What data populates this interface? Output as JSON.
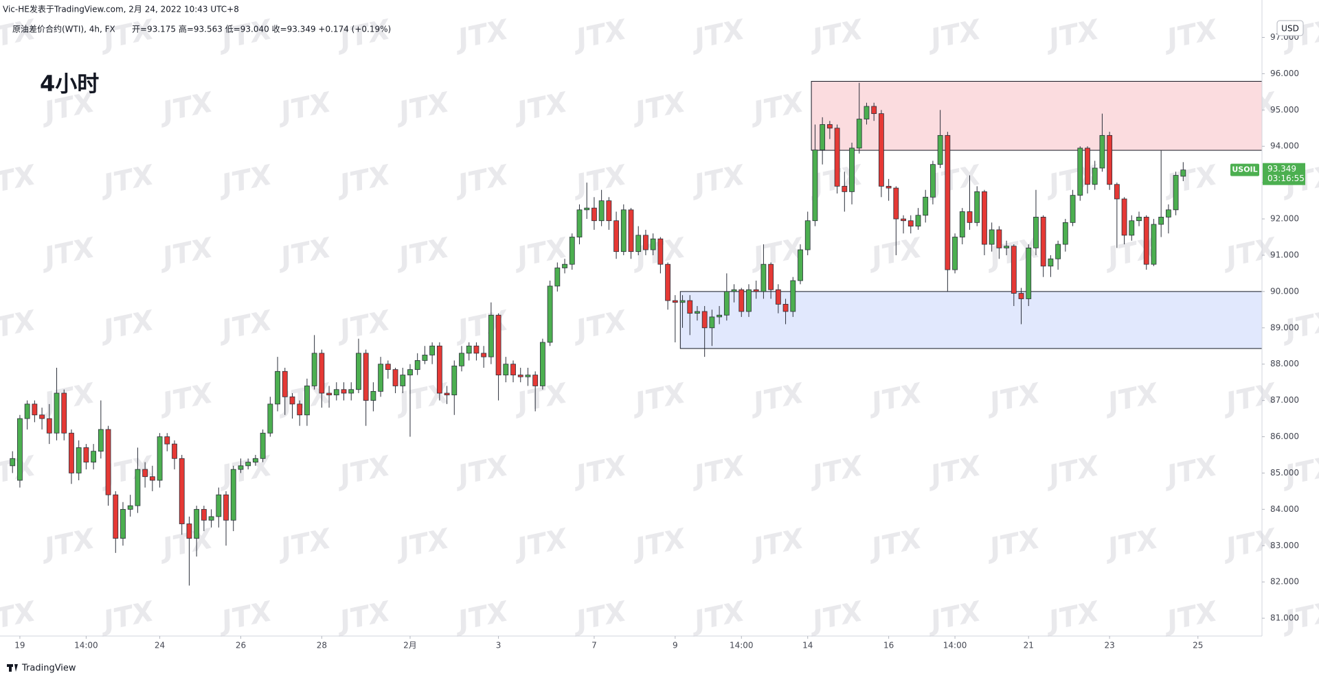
{
  "header": {
    "author_line": "Vic-HE发表于TradingView.com, 2月 24, 2022 10:43 UTC+8",
    "symbol_line": "原油差价合约(WTI), 4h, FX",
    "ohlc_line": "开=93.175 高=93.563 低=93.040 收=93.349 +0.174 (+0.19%)",
    "overlay_title": "4小时"
  },
  "footer": {
    "brand": "TradingView"
  },
  "chart_data": {
    "type": "candlestick",
    "currency": "USD",
    "symbol_tag": "USOIL",
    "countdown": "03:16:55",
    "watermark": "JTX",
    "up_color": "#4caf50",
    "down_color": "#e53935",
    "xlim": [
      -1.7,
      169.7
    ],
    "ylim": [
      80.51,
      98.03
    ],
    "xticks": [
      {
        "value": 1,
        "label": "19"
      },
      {
        "value": 10,
        "label": "14:00"
      },
      {
        "value": 20,
        "label": "24"
      },
      {
        "value": 31,
        "label": "26"
      },
      {
        "value": 42,
        "label": "28"
      },
      {
        "value": 54,
        "label": "2月"
      },
      {
        "value": 66,
        "label": "3"
      },
      {
        "value": 79,
        "label": "7"
      },
      {
        "value": 90,
        "label": "9"
      },
      {
        "value": 99,
        "label": "14:00"
      },
      {
        "value": 108,
        "label": "14"
      },
      {
        "value": 119,
        "label": "16"
      },
      {
        "value": 128,
        "label": "14:00"
      },
      {
        "value": 138,
        "label": "21"
      },
      {
        "value": 149,
        "label": "23"
      },
      {
        "value": 161,
        "label": "25"
      }
    ],
    "yticks": [
      {
        "value": 81,
        "label": "81.000"
      },
      {
        "value": 82,
        "label": "82.000"
      },
      {
        "value": 83,
        "label": "83.000"
      },
      {
        "value": 84,
        "label": "84.000"
      },
      {
        "value": 85,
        "label": "85.000"
      },
      {
        "value": 86,
        "label": "86.000"
      },
      {
        "value": 87,
        "label": "87.000"
      },
      {
        "value": 88,
        "label": "88.000"
      },
      {
        "value": 89,
        "label": "89.000"
      },
      {
        "value": 90,
        "label": "90.000"
      },
      {
        "value": 91,
        "label": "91.000"
      },
      {
        "value": 92,
        "label": "92.000"
      },
      {
        "value": 93,
        "label": "93.000"
      },
      {
        "value": 94,
        "label": "94.000"
      },
      {
        "value": 95,
        "label": "95.000"
      },
      {
        "value": 96,
        "label": "96.000"
      },
      {
        "value": 97,
        "label": "97.000"
      }
    ],
    "zones": [
      {
        "x_start": 108.5,
        "ylim": [
          93.89,
          95.79
        ],
        "color": "#fbdcdf"
      },
      {
        "x_start": 90.7,
        "ylim": [
          88.43,
          90.0
        ],
        "color": "#e1e8fd"
      }
    ],
    "open": [
      85.2,
      84.8,
      86.5,
      86.9,
      86.6,
      86.5,
      86.1,
      87.2,
      86.1,
      85.0,
      85.7,
      85.3,
      85.6,
      86.2,
      84.4,
      83.2,
      84.0,
      84.1,
      85.1,
      84.9,
      84.8,
      86.0,
      85.8,
      85.4,
      83.6,
      83.2,
      84.0,
      83.7,
      83.8,
      84.4,
      83.7,
      85.1,
      85.2,
      85.3,
      85.4,
      86.1,
      86.9,
      87.8,
      87.1,
      86.9,
      86.6,
      87.4,
      88.3,
      87.2,
      87.15,
      87.3,
      87.2,
      87.3,
      88.3,
      87.0,
      87.25,
      88.0,
      87.85,
      87.4,
      87.7,
      87.85,
      88.1,
      88.25,
      88.5,
      87.2,
      87.15,
      87.95,
      88.3,
      88.5,
      88.3,
      88.2,
      89.35,
      87.7,
      88.0,
      87.7,
      87.65,
      87.7,
      87.4,
      88.6,
      90.15,
      90.65,
      90.75,
      91.5,
      92.25,
      92.3,
      91.95,
      92.5,
      91.95,
      91.1,
      92.25,
      91.1,
      91.55,
      91.15,
      91.45,
      90.75,
      89.75,
      89.7,
      89.75,
      89.4,
      89.45,
      89.0,
      89.3,
      89.35,
      90.0,
      90.05,
      89.45,
      90.05,
      90.0,
      90.75,
      90.05,
      89.65,
      89.45,
      90.3,
      91.15,
      91.95,
      93.9,
      94.6,
      94.5,
      92.9,
      92.75,
      93.95,
      94.75,
      95.1,
      94.9,
      92.9,
      92.85,
      92.0,
      91.95,
      91.8,
      92.1,
      92.6,
      93.5,
      94.3,
      90.6,
      91.5,
      92.2,
      91.9,
      92.75,
      91.3,
      91.7,
      91.2,
      91.25,
      89.95,
      89.8,
      91.2,
      92.05,
      90.7,
      90.9,
      91.3,
      91.9,
      92.65,
      93.95,
      92.95,
      93.4,
      94.3,
      92.95,
      92.55,
      91.55,
      91.95,
      92.05,
      90.75,
      91.85,
      92.05,
      92.25,
      93.175
    ],
    "high": [
      85.6,
      86.6,
      87.0,
      87.0,
      86.8,
      86.9,
      87.9,
      87.3,
      86.2,
      85.9,
      85.8,
      85.8,
      87.0,
      86.3,
      84.5,
      84.2,
      84.4,
      85.7,
      85.3,
      85.2,
      86.1,
      86.1,
      85.9,
      85.5,
      83.8,
      84.1,
      84.1,
      84.0,
      84.6,
      84.5,
      85.2,
      85.4,
      85.4,
      85.5,
      86.2,
      87.1,
      88.2,
      87.9,
      87.2,
      87.0,
      87.6,
      88.8,
      88.4,
      87.4,
      87.5,
      87.5,
      87.5,
      88.7,
      88.4,
      87.5,
      88.2,
      88.1,
      87.9,
      87.9,
      88.0,
      88.3,
      88.5,
      88.6,
      88.6,
      87.4,
      88.1,
      88.5,
      88.6,
      88.6,
      88.5,
      89.7,
      89.4,
      88.2,
      88.1,
      87.9,
      87.9,
      87.8,
      88.7,
      90.3,
      90.8,
      90.9,
      91.6,
      92.4,
      93.0,
      92.6,
      92.8,
      92.6,
      92.2,
      92.4,
      92.3,
      91.8,
      91.7,
      91.6,
      91.5,
      90.8,
      89.9,
      89.9,
      89.9,
      89.6,
      89.6,
      89.5,
      89.6,
      90.5,
      90.2,
      90.1,
      90.2,
      90.3,
      91.3,
      90.8,
      90.2,
      89.8,
      90.4,
      91.3,
      92.2,
      94.6,
      94.8,
      94.7,
      94.6,
      93.3,
      94.1,
      95.75,
      95.2,
      95.2,
      95.0,
      93.1,
      92.9,
      92.1,
      92.1,
      92.3,
      92.8,
      93.6,
      95.0,
      94.4,
      91.6,
      92.3,
      93.2,
      92.9,
      92.8,
      91.9,
      91.8,
      91.4,
      91.3,
      90.1,
      91.3,
      92.8,
      92.1,
      91.0,
      91.4,
      92.0,
      92.8,
      94.0,
      94.0,
      93.6,
      94.9,
      94.4,
      93.0,
      92.6,
      92.1,
      92.2,
      92.1,
      92.0,
      93.9,
      92.4,
      93.3,
      93.563
    ],
    "low": [
      85.0,
      84.6,
      86.2,
      86.4,
      86.2,
      85.8,
      85.9,
      85.9,
      84.7,
      84.8,
      85.1,
      85.1,
      85.4,
      84.1,
      82.8,
      83.0,
      83.8,
      83.9,
      84.6,
      84.5,
      84.6,
      85.6,
      85.1,
      83.3,
      81.9,
      82.7,
      83.4,
      83.5,
      83.5,
      83.0,
      83.4,
      85.0,
      85.1,
      85.2,
      85.3,
      86.0,
      86.7,
      86.6,
      86.5,
      86.3,
      86.3,
      87.3,
      86.8,
      86.8,
      87.0,
      87.0,
      87.0,
      87.2,
      86.3,
      86.7,
      87.1,
      87.6,
      87.2,
      87.2,
      86.0,
      87.7,
      88.0,
      88.0,
      87.0,
      86.9,
      86.6,
      87.8,
      88.1,
      88.1,
      87.9,
      88.0,
      87.0,
      87.5,
      87.5,
      87.5,
      87.4,
      86.7,
      87.3,
      88.5,
      90.0,
      90.5,
      90.6,
      91.3,
      92.0,
      91.7,
      91.8,
      91.7,
      90.9,
      91.0,
      90.9,
      91.0,
      91.0,
      91.0,
      90.5,
      89.5,
      88.6,
      89.0,
      88.8,
      89.2,
      88.2,
      88.5,
      89.1,
      89.2,
      89.7,
      89.3,
      89.3,
      89.8,
      89.8,
      89.8,
      89.4,
      89.1,
      89.3,
      90.2,
      91.0,
      91.8,
      93.5,
      94.2,
      92.7,
      92.2,
      92.4,
      93.8,
      94.6,
      94.7,
      92.6,
      92.5,
      91.0,
      91.6,
      91.6,
      91.7,
      91.9,
      92.4,
      93.4,
      90.0,
      90.5,
      91.3,
      91.7,
      91.8,
      91.0,
      91.1,
      90.9,
      91.0,
      89.6,
      89.1,
      89.6,
      91.0,
      90.4,
      90.4,
      90.6,
      91.1,
      91.8,
      92.5,
      92.7,
      92.8,
      93.3,
      92.8,
      91.2,
      91.3,
      91.4,
      91.8,
      90.6,
      90.7,
      91.5,
      91.6,
      92.1,
      93.04
    ],
    "close": [
      85.4,
      86.5,
      86.9,
      86.6,
      86.5,
      86.1,
      87.2,
      86.1,
      85.0,
      85.7,
      85.3,
      85.6,
      86.2,
      84.4,
      83.2,
      84.0,
      84.1,
      85.1,
      84.9,
      84.8,
      86.0,
      85.8,
      85.4,
      83.6,
      83.2,
      84.0,
      83.7,
      83.8,
      84.4,
      83.7,
      85.1,
      85.2,
      85.3,
      85.4,
      86.1,
      86.9,
      87.8,
      87.1,
      86.9,
      86.6,
      87.4,
      88.3,
      87.2,
      87.15,
      87.3,
      87.2,
      87.3,
      88.3,
      87.0,
      87.25,
      88.0,
      87.85,
      87.4,
      87.7,
      87.85,
      88.1,
      88.25,
      88.5,
      87.2,
      87.15,
      87.95,
      88.3,
      88.5,
      88.3,
      88.2,
      89.35,
      87.7,
      88.0,
      87.7,
      87.65,
      87.7,
      87.4,
      88.6,
      90.15,
      90.65,
      90.75,
      91.5,
      92.25,
      92.3,
      91.95,
      92.5,
      91.95,
      91.1,
      92.25,
      91.1,
      91.55,
      91.15,
      91.45,
      90.75,
      89.75,
      89.7,
      89.75,
      89.4,
      89.45,
      89.0,
      89.3,
      89.35,
      90.0,
      90.05,
      89.45,
      90.05,
      90.0,
      90.75,
      90.05,
      89.65,
      89.45,
      90.3,
      91.15,
      91.95,
      93.9,
      94.6,
      94.5,
      92.9,
      92.75,
      93.95,
      94.75,
      95.1,
      94.9,
      92.9,
      92.85,
      92.0,
      91.95,
      91.8,
      92.1,
      92.6,
      93.5,
      94.3,
      90.6,
      91.5,
      92.2,
      91.9,
      92.75,
      91.3,
      91.7,
      91.2,
      91.25,
      89.95,
      89.8,
      91.2,
      92.05,
      90.7,
      90.9,
      91.3,
      91.9,
      92.65,
      93.95,
      92.95,
      93.4,
      94.3,
      92.95,
      92.55,
      91.55,
      91.95,
      92.05,
      90.75,
      91.85,
      92.05,
      92.25,
      93.2,
      93.349
    ]
  }
}
